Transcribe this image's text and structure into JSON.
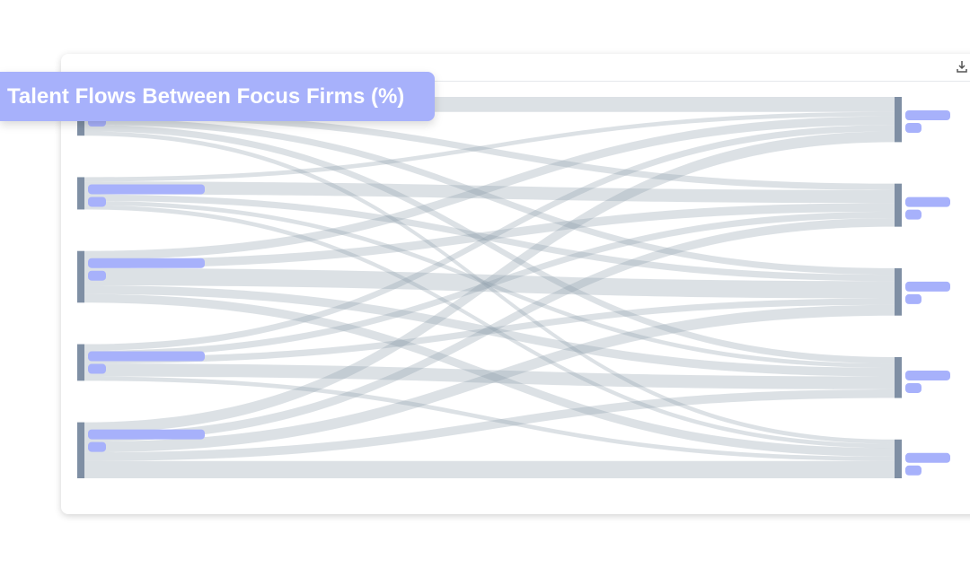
{
  "chart_data": {
    "type": "sankey",
    "title": "Talent Flows Between Focus Firms (%)",
    "values": [
      [
        7,
        3,
        3,
        3,
        2
      ],
      [
        2,
        6,
        3,
        2,
        2
      ],
      [
        4,
        4,
        8,
        4,
        4
      ],
      [
        3,
        3,
        3,
        6,
        2
      ],
      [
        5,
        4,
        5,
        4,
        8
      ]
    ],
    "link_color": "#8c9baa",
    "node_color": "#7f8fa4"
  }
}
